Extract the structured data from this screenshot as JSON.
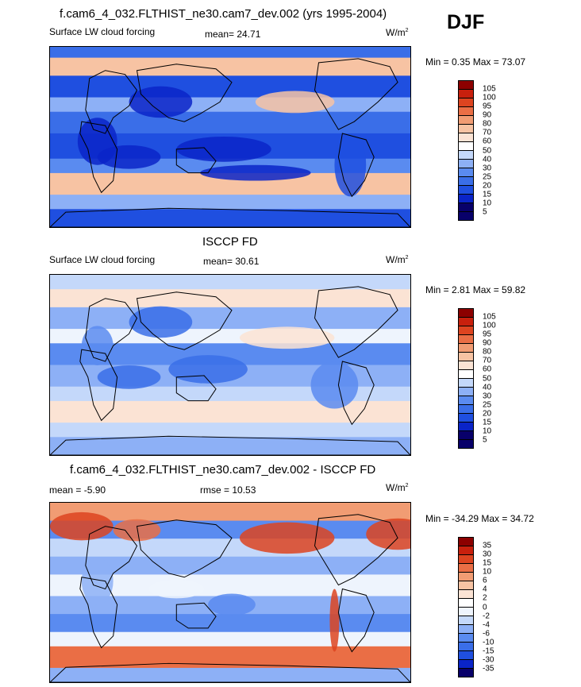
{
  "season": "DJF",
  "palette_colors": [
    "#08006a",
    "#0a24c8",
    "#1f4fe0",
    "#3a6ee8",
    "#5a8bf0",
    "#8db0f6",
    "#c4d8fa",
    "#eef4fd",
    "#fbe3d4",
    "#f7c3a3",
    "#f19c73",
    "#ea6e45",
    "#dd4420",
    "#c8200d",
    "#8c0000"
  ],
  "panels": [
    {
      "title": "f.cam6_4_032.FLTHIST_ne30.cam7_dev.002 (yrs 1995-2004)",
      "left_label": "Surface LW cloud forcing",
      "center_label": "mean=  24.71",
      "units": "W/m",
      "units_exp": "2",
      "minmax": "Min =   0.35 Max =  73.07",
      "colorbar_labels": [
        "105",
        "100",
        "95",
        "90",
        "80",
        "70",
        "60",
        "50",
        "40",
        "30",
        "25",
        "20",
        "15",
        "10",
        "5"
      ],
      "colorbar_colors": [
        "#8c0000",
        "#c8200d",
        "#dd4420",
        "#ea6e45",
        "#f19c73",
        "#f7c3a3",
        "#fbe3d4",
        "#ffffff",
        "#c4d8fa",
        "#8db0f6",
        "#5a8bf0",
        "#3a6ee8",
        "#1f4fe0",
        "#0a24c8",
        "#08006a",
        "#08006a"
      ],
      "field_type": "model"
    },
    {
      "title": "ISCCP FD",
      "left_label": "Surface LW cloud forcing",
      "center_label": "mean=  30.61",
      "units": "W/m",
      "units_exp": "2",
      "minmax": "Min =   2.81 Max =  59.82",
      "colorbar_labels": [
        "105",
        "100",
        "95",
        "90",
        "80",
        "70",
        "60",
        "50",
        "40",
        "30",
        "25",
        "20",
        "15",
        "10",
        "5"
      ],
      "colorbar_colors": [
        "#8c0000",
        "#c8200d",
        "#dd4420",
        "#ea6e45",
        "#f19c73",
        "#f7c3a3",
        "#fbe3d4",
        "#ffffff",
        "#c4d8fa",
        "#8db0f6",
        "#5a8bf0",
        "#3a6ee8",
        "#1f4fe0",
        "#0a24c8",
        "#08006a",
        "#08006a"
      ],
      "field_type": "obs"
    },
    {
      "title": "f.cam6_4_032.FLTHIST_ne30.cam7_dev.002 - ISCCP FD",
      "left_label": "mean =  -5.90",
      "center_label": "rmse =  10.53",
      "units": "W/m",
      "units_exp": "2",
      "minmax": "Min = -34.29 Max =  34.72",
      "colorbar_labels": [
        "35",
        "30",
        "15",
        "10",
        "6",
        "4",
        "2",
        "0",
        "-2",
        "-4",
        "-6",
        "-10",
        "-15",
        "-30",
        "-35"
      ],
      "colorbar_colors": [
        "#8c0000",
        "#c8200d",
        "#dd4420",
        "#ea6e45",
        "#f19c73",
        "#f7c3a3",
        "#fbe3d4",
        "#ffffff",
        "#eef4fd",
        "#c4d8fa",
        "#8db0f6",
        "#5a8bf0",
        "#3a6ee8",
        "#1f4fe0",
        "#0a24c8",
        "#08006a"
      ],
      "field_type": "diff"
    }
  ]
}
